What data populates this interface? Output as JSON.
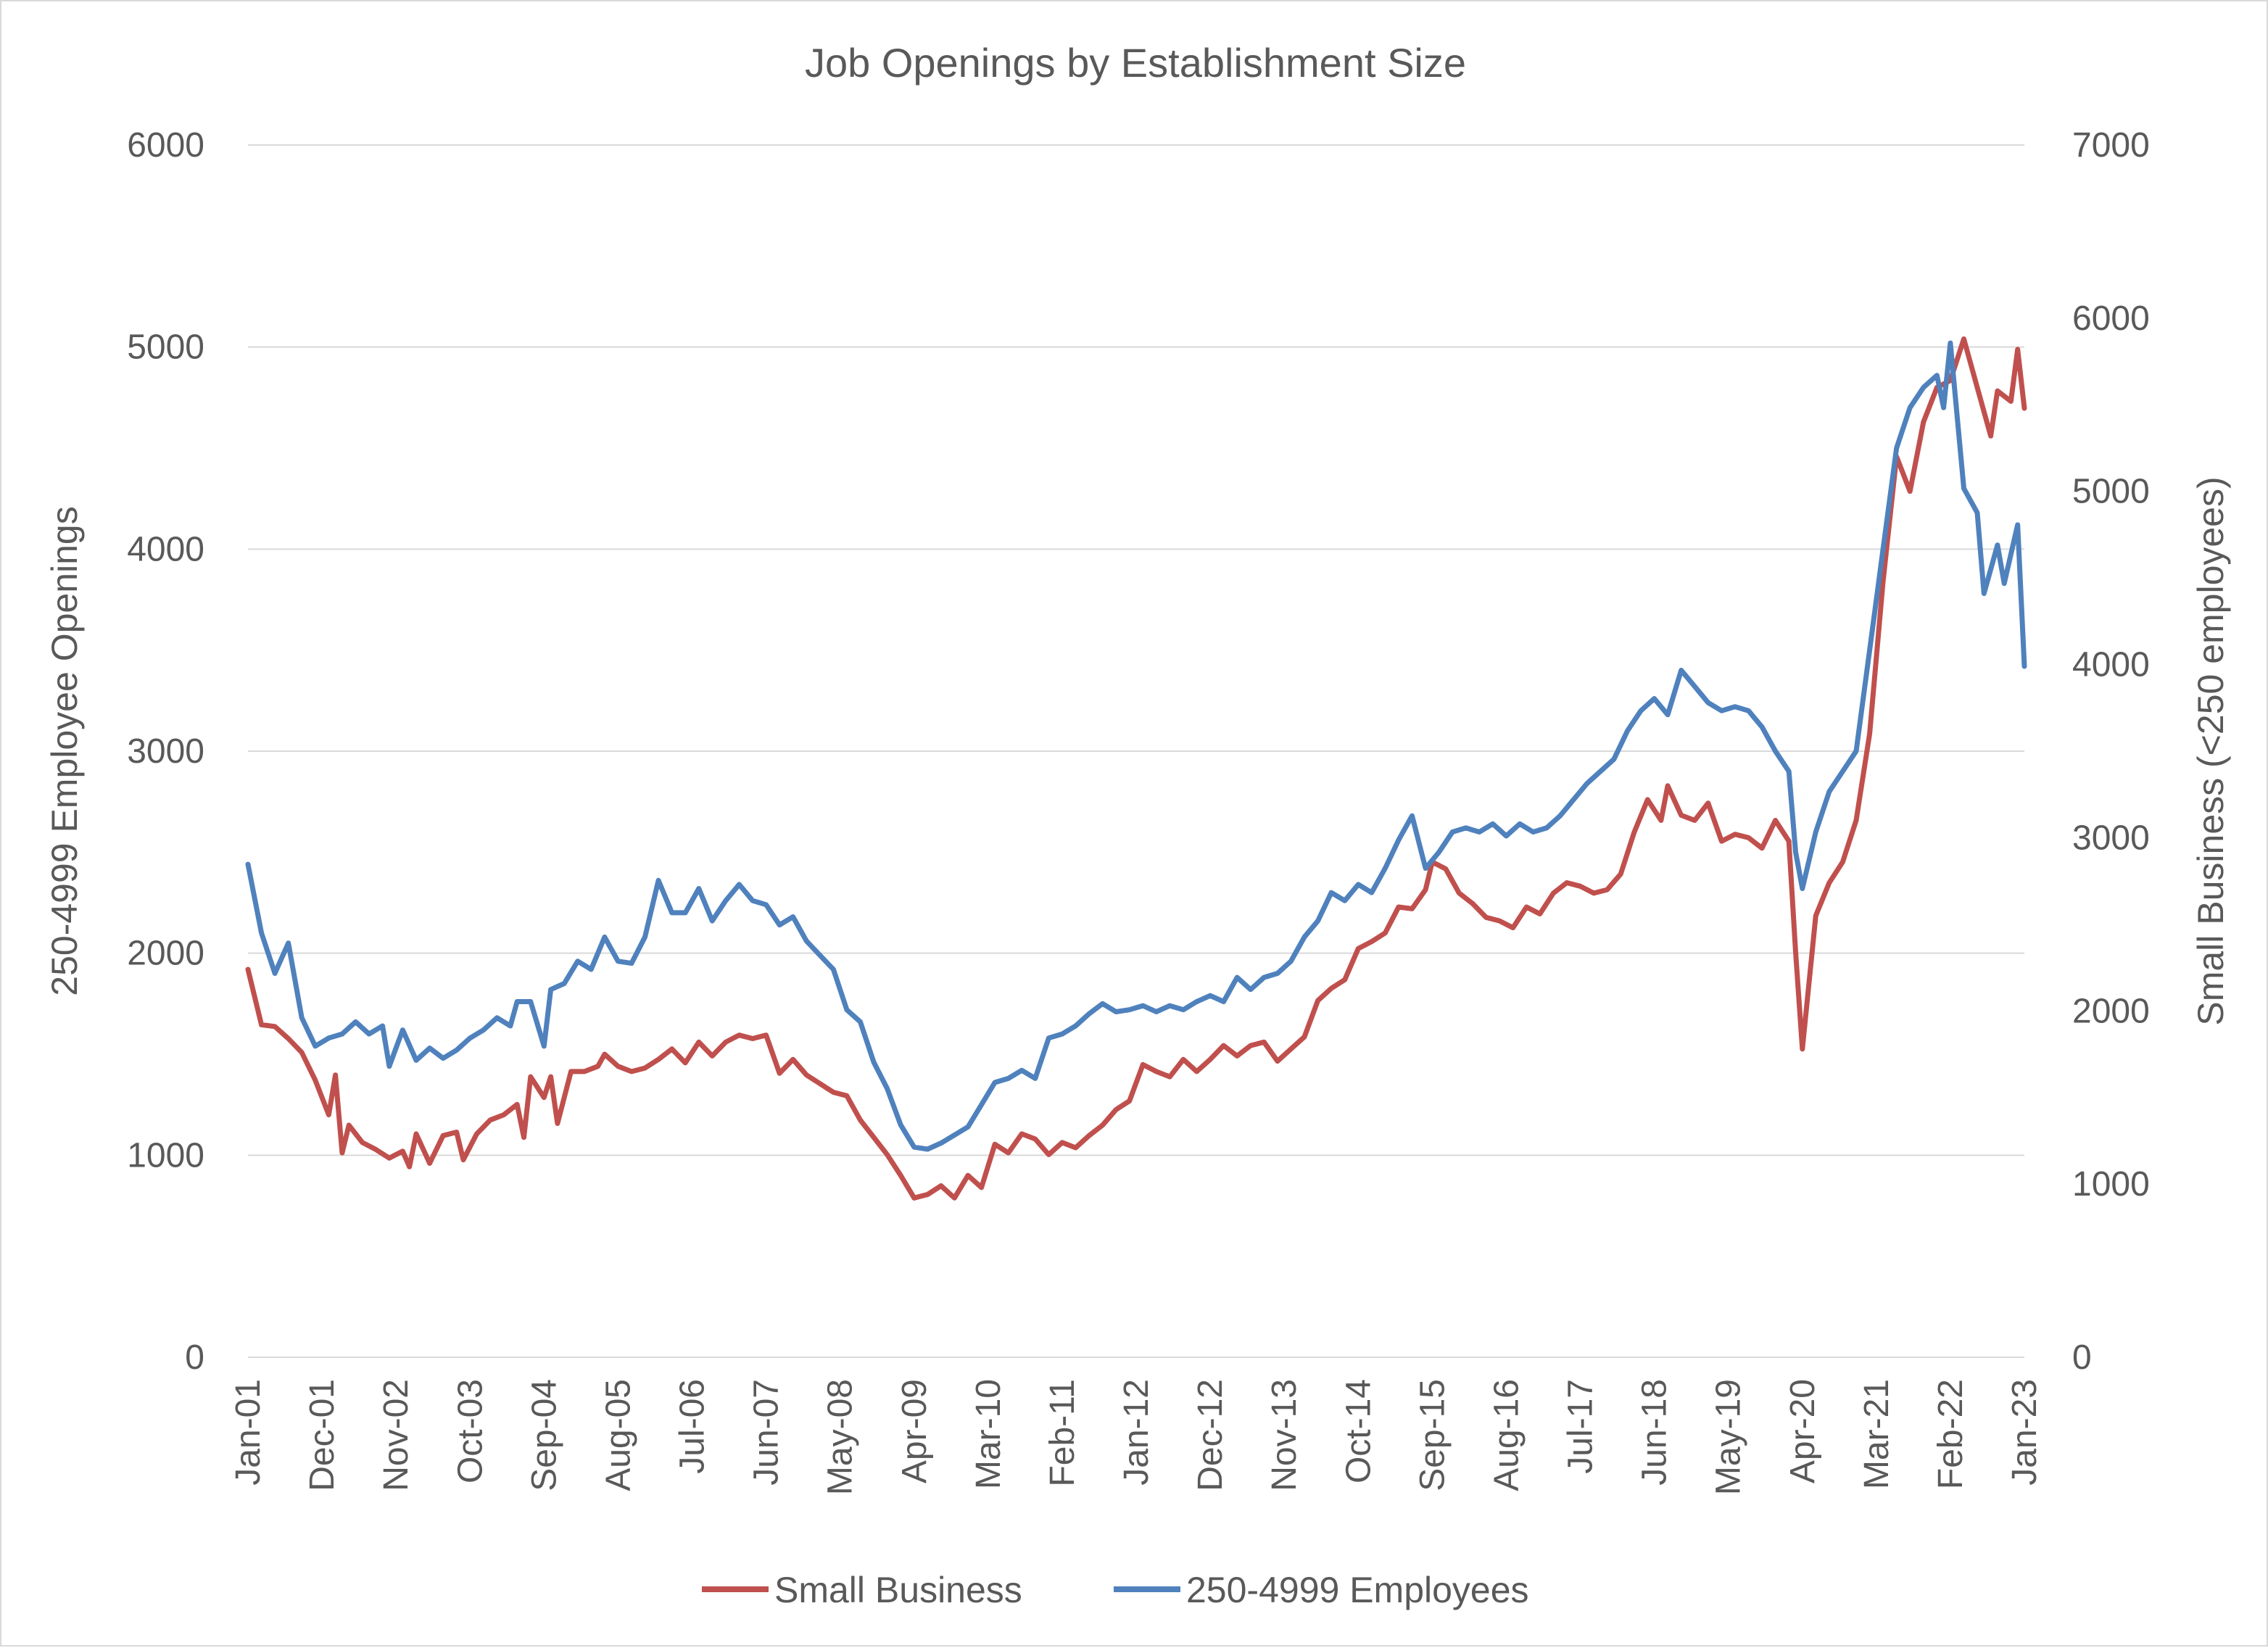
{
  "chart_data": {
    "type": "line",
    "title": "Job Openings by Establishment Size",
    "left_axis": {
      "label": "250-4999 Employee Openings",
      "min": 0,
      "max": 6000,
      "step": 1000,
      "ticks": [
        "0",
        "1000",
        "2000",
        "3000",
        "4000",
        "5000",
        "6000"
      ]
    },
    "right_axis": {
      "label": "Small Business (<250 employees)",
      "min": 0,
      "max": 7000,
      "step": 1000,
      "ticks": [
        "0",
        "1000",
        "2000",
        "3000",
        "4000",
        "5000",
        "6000",
        "7000"
      ]
    },
    "x_axis": {
      "start": "Jan-01",
      "end": "Jan-23",
      "tick_labels": [
        "Jan-01",
        "Dec-01",
        "Nov-02",
        "Oct-03",
        "Sep-04",
        "Aug-05",
        "Jul-06",
        "Jun-07",
        "May-08",
        "Apr-09",
        "Mar-10",
        "Feb-11",
        "Jan-12",
        "Dec-12",
        "Nov-13",
        "Oct-14",
        "Sep-15",
        "Aug-16",
        "Jul-17",
        "Jun-18",
        "May-19",
        "Apr-20",
        "Mar-21",
        "Feb-22",
        "Jan-23"
      ]
    },
    "grid": true,
    "legend_position": "bottom",
    "series": [
      {
        "name": "Small Business",
        "axis": "right",
        "color": "#c0504d",
        "points": [
          [
            "Jan-01",
            2240
          ],
          [
            "Mar-01",
            1920
          ],
          [
            "May-01",
            1910
          ],
          [
            "Jul-01",
            1840
          ],
          [
            "Sep-01",
            1760
          ],
          [
            "Nov-01",
            1600
          ],
          [
            "Jan-02",
            1400
          ],
          [
            "Feb-02",
            1630
          ],
          [
            "Mar-02",
            1180
          ],
          [
            "Apr-02",
            1340
          ],
          [
            "Jun-02",
            1240
          ],
          [
            "Aug-02",
            1200
          ],
          [
            "Oct-02",
            1150
          ],
          [
            "Dec-02",
            1190
          ],
          [
            "Jan-03",
            1100
          ],
          [
            "Feb-03",
            1290
          ],
          [
            "Apr-03",
            1120
          ],
          [
            "Jun-03",
            1280
          ],
          [
            "Aug-03",
            1300
          ],
          [
            "Sep-03",
            1140
          ],
          [
            "Nov-03",
            1290
          ],
          [
            "Jan-04",
            1370
          ],
          [
            "Mar-04",
            1400
          ],
          [
            "May-04",
            1460
          ],
          [
            "Jun-04",
            1270
          ],
          [
            "Jul-04",
            1620
          ],
          [
            "Sep-04",
            1500
          ],
          [
            "Oct-04",
            1620
          ],
          [
            "Nov-04",
            1350
          ],
          [
            "Jan-05",
            1650
          ],
          [
            "Mar-05",
            1650
          ],
          [
            "May-05",
            1680
          ],
          [
            "Jun-05",
            1750
          ],
          [
            "Aug-05",
            1680
          ],
          [
            "Oct-05",
            1650
          ],
          [
            "Dec-05",
            1670
          ],
          [
            "Feb-06",
            1720
          ],
          [
            "Apr-06",
            1780
          ],
          [
            "Jun-06",
            1700
          ],
          [
            "Aug-06",
            1820
          ],
          [
            "Oct-06",
            1740
          ],
          [
            "Dec-06",
            1820
          ],
          [
            "Feb-07",
            1860
          ],
          [
            "Apr-07",
            1840
          ],
          [
            "Jun-07",
            1860
          ],
          [
            "Aug-07",
            1640
          ],
          [
            "Oct-07",
            1720
          ],
          [
            "Dec-07",
            1630
          ],
          [
            "Feb-08",
            1580
          ],
          [
            "Apr-08",
            1530
          ],
          [
            "Jun-08",
            1510
          ],
          [
            "Aug-08",
            1370
          ],
          [
            "Oct-08",
            1270
          ],
          [
            "Dec-08",
            1170
          ],
          [
            "Feb-09",
            1050
          ],
          [
            "Apr-09",
            920
          ],
          [
            "Jun-09",
            940
          ],
          [
            "Aug-09",
            990
          ],
          [
            "Oct-09",
            920
          ],
          [
            "Dec-09",
            1050
          ],
          [
            "Feb-10",
            980
          ],
          [
            "Apr-10",
            1230
          ],
          [
            "Jun-10",
            1180
          ],
          [
            "Aug-10",
            1290
          ],
          [
            "Oct-10",
            1260
          ],
          [
            "Dec-10",
            1170
          ],
          [
            "Feb-11",
            1240
          ],
          [
            "Apr-11",
            1210
          ],
          [
            "Jun-11",
            1280
          ],
          [
            "Aug-11",
            1340
          ],
          [
            "Oct-11",
            1430
          ],
          [
            "Dec-11",
            1480
          ],
          [
            "Feb-12",
            1690
          ],
          [
            "Apr-12",
            1650
          ],
          [
            "Jun-12",
            1620
          ],
          [
            "Aug-12",
            1720
          ],
          [
            "Oct-12",
            1650
          ],
          [
            "Dec-12",
            1720
          ],
          [
            "Feb-13",
            1800
          ],
          [
            "Apr-13",
            1740
          ],
          [
            "Jun-13",
            1800
          ],
          [
            "Aug-13",
            1820
          ],
          [
            "Oct-13",
            1710
          ],
          [
            "Dec-13",
            1780
          ],
          [
            "Feb-14",
            1850
          ],
          [
            "Apr-14",
            2060
          ],
          [
            "Jun-14",
            2130
          ],
          [
            "Aug-14",
            2180
          ],
          [
            "Oct-14",
            2360
          ],
          [
            "Dec-14",
            2400
          ],
          [
            "Feb-15",
            2450
          ],
          [
            "Apr-15",
            2600
          ],
          [
            "Jun-15",
            2590
          ],
          [
            "Aug-15",
            2700
          ],
          [
            "Sep-15",
            2860
          ],
          [
            "Nov-15",
            2820
          ],
          [
            "Jan-16",
            2680
          ],
          [
            "Mar-16",
            2620
          ],
          [
            "May-16",
            2540
          ],
          [
            "Jul-16",
            2520
          ],
          [
            "Sep-16",
            2480
          ],
          [
            "Nov-16",
            2600
          ],
          [
            "Jan-17",
            2560
          ],
          [
            "Mar-17",
            2680
          ],
          [
            "May-17",
            2740
          ],
          [
            "Jul-17",
            2720
          ],
          [
            "Sep-17",
            2680
          ],
          [
            "Nov-17",
            2700
          ],
          [
            "Jan-18",
            2790
          ],
          [
            "Mar-18",
            3030
          ],
          [
            "May-18",
            3220
          ],
          [
            "Jul-18",
            3100
          ],
          [
            "Aug-18",
            3300
          ],
          [
            "Oct-18",
            3130
          ],
          [
            "Dec-18",
            3100
          ],
          [
            "Feb-19",
            3200
          ],
          [
            "Apr-19",
            2980
          ],
          [
            "Jun-19",
            3020
          ],
          [
            "Aug-19",
            3000
          ],
          [
            "Oct-19",
            2940
          ],
          [
            "Dec-19",
            3100
          ],
          [
            "Feb-20",
            2980
          ],
          [
            "Mar-20",
            2340
          ],
          [
            "Apr-20",
            1780
          ],
          [
            "Jun-20",
            2550
          ],
          [
            "Aug-20",
            2740
          ],
          [
            "Oct-20",
            2860
          ],
          [
            "Dec-20",
            3100
          ],
          [
            "Feb-21",
            3600
          ],
          [
            "Apr-21",
            4480
          ],
          [
            "Jun-21",
            5200
          ],
          [
            "Aug-21",
            5000
          ],
          [
            "Oct-21",
            5400
          ],
          [
            "Dec-21",
            5600
          ],
          [
            "Feb-22",
            5640
          ],
          [
            "Apr-22",
            5880
          ],
          [
            "Jun-22",
            5600
          ],
          [
            "Aug-22",
            5320
          ],
          [
            "Sep-22",
            5580
          ],
          [
            "Nov-22",
            5520
          ],
          [
            "Dec-22",
            5820
          ],
          [
            "Jan-23",
            5480
          ]
        ]
      },
      {
        "name": "250-4999 Employees",
        "axis": "left",
        "color": "#4f81bd",
        "points": [
          [
            "Jan-01",
            2440
          ],
          [
            "Mar-01",
            2100
          ],
          [
            "May-01",
            1900
          ],
          [
            "Jul-01",
            2050
          ],
          [
            "Sep-01",
            1680
          ],
          [
            "Nov-01",
            1540
          ],
          [
            "Jan-02",
            1580
          ],
          [
            "Mar-02",
            1600
          ],
          [
            "May-02",
            1660
          ],
          [
            "Jul-02",
            1600
          ],
          [
            "Sep-02",
            1640
          ],
          [
            "Oct-02",
            1440
          ],
          [
            "Dec-02",
            1620
          ],
          [
            "Feb-03",
            1470
          ],
          [
            "Apr-03",
            1530
          ],
          [
            "Jun-03",
            1480
          ],
          [
            "Aug-03",
            1520
          ],
          [
            "Oct-03",
            1580
          ],
          [
            "Dec-03",
            1620
          ],
          [
            "Feb-04",
            1680
          ],
          [
            "Apr-04",
            1640
          ],
          [
            "May-04",
            1760
          ],
          [
            "Jul-04",
            1760
          ],
          [
            "Sep-04",
            1540
          ],
          [
            "Oct-04",
            1820
          ],
          [
            "Dec-04",
            1850
          ],
          [
            "Feb-05",
            1960
          ],
          [
            "Apr-05",
            1920
          ],
          [
            "Jun-05",
            2080
          ],
          [
            "Aug-05",
            1960
          ],
          [
            "Oct-05",
            1950
          ],
          [
            "Dec-05",
            2080
          ],
          [
            "Feb-06",
            2360
          ],
          [
            "Apr-06",
            2200
          ],
          [
            "Jun-06",
            2200
          ],
          [
            "Aug-06",
            2320
          ],
          [
            "Oct-06",
            2160
          ],
          [
            "Dec-06",
            2260
          ],
          [
            "Feb-07",
            2340
          ],
          [
            "Apr-07",
            2260
          ],
          [
            "Jun-07",
            2240
          ],
          [
            "Aug-07",
            2140
          ],
          [
            "Oct-07",
            2180
          ],
          [
            "Dec-07",
            2060
          ],
          [
            "Feb-08",
            1990
          ],
          [
            "Apr-08",
            1920
          ],
          [
            "Jun-08",
            1720
          ],
          [
            "Aug-08",
            1660
          ],
          [
            "Oct-08",
            1460
          ],
          [
            "Dec-08",
            1330
          ],
          [
            "Feb-09",
            1150
          ],
          [
            "Apr-09",
            1040
          ],
          [
            "Jun-09",
            1030
          ],
          [
            "Aug-09",
            1060
          ],
          [
            "Oct-09",
            1100
          ],
          [
            "Dec-09",
            1140
          ],
          [
            "Feb-10",
            1250
          ],
          [
            "Apr-10",
            1360
          ],
          [
            "Jun-10",
            1380
          ],
          [
            "Aug-10",
            1420
          ],
          [
            "Oct-10",
            1380
          ],
          [
            "Dec-10",
            1580
          ],
          [
            "Feb-11",
            1600
          ],
          [
            "Apr-11",
            1640
          ],
          [
            "Jun-11",
            1700
          ],
          [
            "Aug-11",
            1750
          ],
          [
            "Oct-11",
            1710
          ],
          [
            "Dec-11",
            1720
          ],
          [
            "Feb-12",
            1740
          ],
          [
            "Apr-12",
            1710
          ],
          [
            "Jun-12",
            1740
          ],
          [
            "Aug-12",
            1720
          ],
          [
            "Oct-12",
            1760
          ],
          [
            "Dec-12",
            1790
          ],
          [
            "Feb-13",
            1760
          ],
          [
            "Apr-13",
            1880
          ],
          [
            "Jun-13",
            1820
          ],
          [
            "Aug-13",
            1880
          ],
          [
            "Oct-13",
            1900
          ],
          [
            "Dec-13",
            1960
          ],
          [
            "Feb-14",
            2080
          ],
          [
            "Apr-14",
            2160
          ],
          [
            "Jun-14",
            2300
          ],
          [
            "Aug-14",
            2260
          ],
          [
            "Oct-14",
            2340
          ],
          [
            "Dec-14",
            2300
          ],
          [
            "Feb-15",
            2420
          ],
          [
            "Apr-15",
            2560
          ],
          [
            "Jun-15",
            2680
          ],
          [
            "Aug-15",
            2420
          ],
          [
            "Oct-15",
            2500
          ],
          [
            "Dec-15",
            2600
          ],
          [
            "Feb-16",
            2620
          ],
          [
            "Apr-16",
            2600
          ],
          [
            "Jun-16",
            2640
          ],
          [
            "Aug-16",
            2580
          ],
          [
            "Oct-16",
            2640
          ],
          [
            "Dec-16",
            2600
          ],
          [
            "Feb-17",
            2620
          ],
          [
            "Apr-17",
            2680
          ],
          [
            "Jun-17",
            2760
          ],
          [
            "Aug-17",
            2840
          ],
          [
            "Oct-17",
            2900
          ],
          [
            "Dec-17",
            2960
          ],
          [
            "Feb-18",
            3100
          ],
          [
            "Apr-18",
            3200
          ],
          [
            "Jun-18",
            3260
          ],
          [
            "Aug-18",
            3180
          ],
          [
            "Oct-18",
            3400
          ],
          [
            "Dec-18",
            3320
          ],
          [
            "Feb-19",
            3240
          ],
          [
            "Apr-19",
            3200
          ],
          [
            "Jun-19",
            3220
          ],
          [
            "Aug-19",
            3200
          ],
          [
            "Oct-19",
            3120
          ],
          [
            "Dec-19",
            3000
          ],
          [
            "Feb-20",
            2900
          ],
          [
            "Mar-20",
            2500
          ],
          [
            "Apr-20",
            2320
          ],
          [
            "Jun-20",
            2600
          ],
          [
            "Aug-20",
            2800
          ],
          [
            "Oct-20",
            2900
          ],
          [
            "Dec-20",
            3000
          ],
          [
            "Feb-21",
            3500
          ],
          [
            "Apr-21",
            4000
          ],
          [
            "Jun-21",
            4500
          ],
          [
            "Aug-21",
            4700
          ],
          [
            "Oct-21",
            4800
          ],
          [
            "Dec-21",
            4860
          ],
          [
            "Jan-22",
            4700
          ],
          [
            "Feb-22",
            5020
          ],
          [
            "Apr-22",
            4300
          ],
          [
            "Jun-22",
            4180
          ],
          [
            "Jul-22",
            3780
          ],
          [
            "Sep-22",
            4020
          ],
          [
            "Oct-22",
            3830
          ],
          [
            "Dec-22",
            4120
          ],
          [
            "Jan-23",
            3420
          ]
        ]
      }
    ]
  }
}
